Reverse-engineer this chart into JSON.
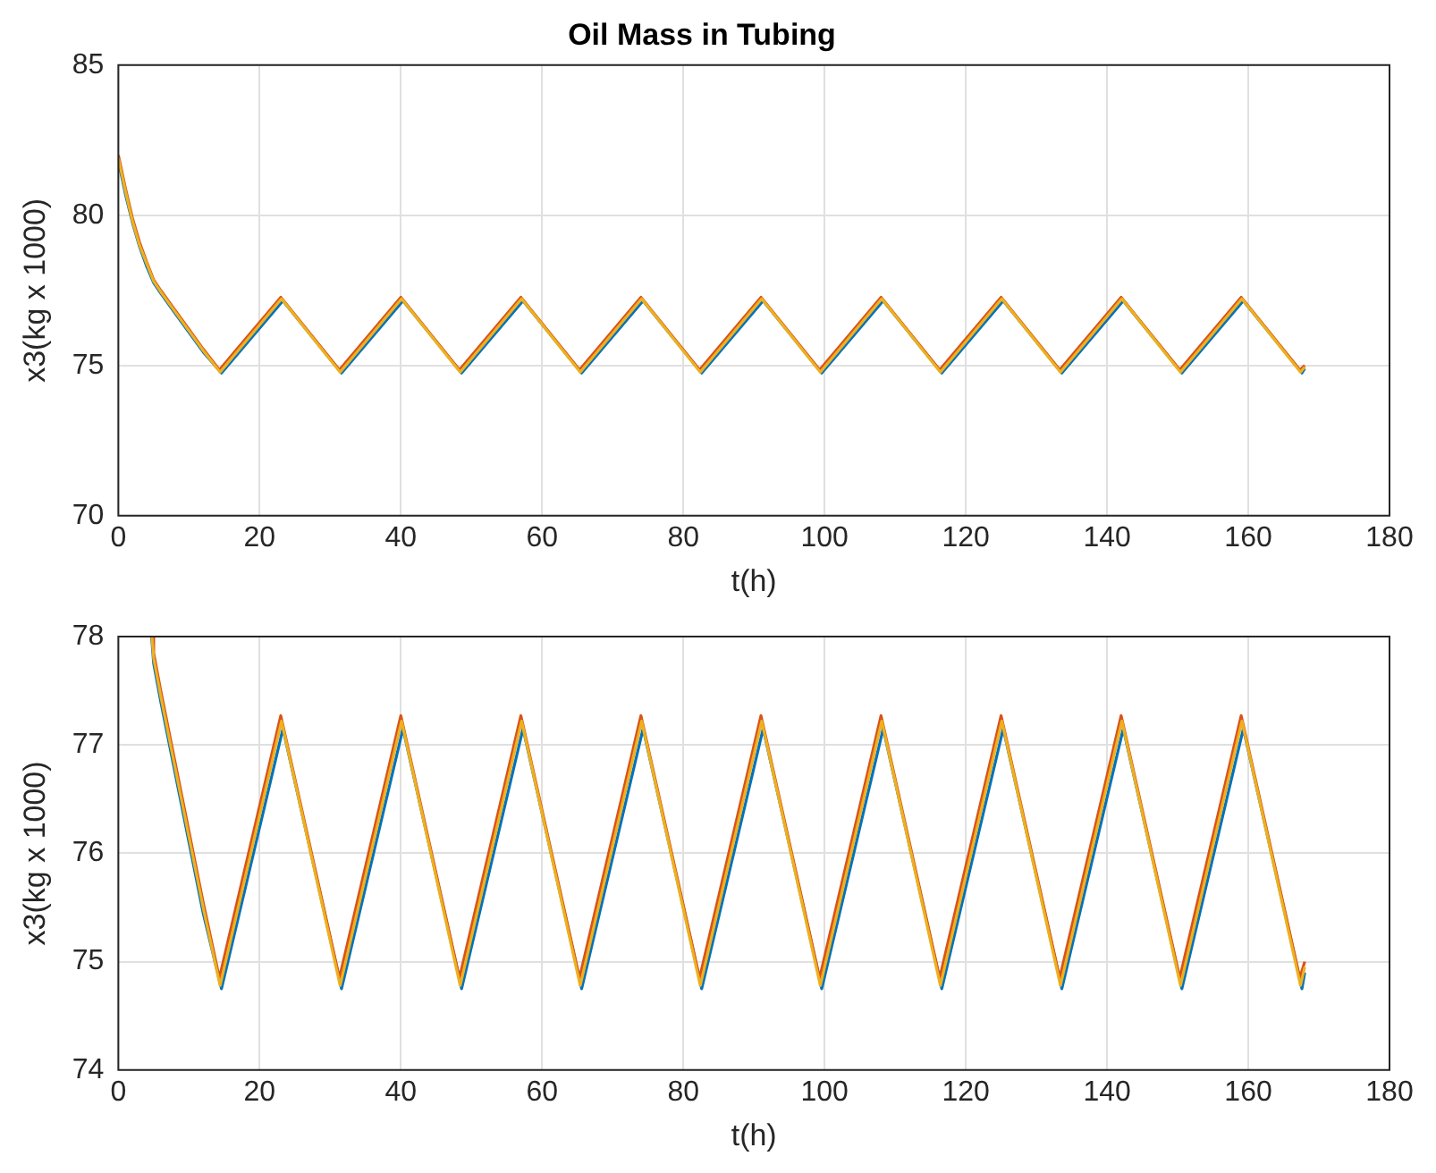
{
  "chart_data": [
    {
      "type": "line",
      "title": "Oil Mass in Tubing",
      "xlabel": "t(h)",
      "ylabel": "x3(kg x 1000)",
      "xlim": [
        0,
        180
      ],
      "xticks": [
        0,
        20,
        40,
        60,
        80,
        100,
        120,
        140,
        160,
        180
      ],
      "ylim": [
        70,
        85
      ],
      "yticks": [
        70,
        75,
        80,
        85
      ],
      "grid": true,
      "series": [
        {
          "color": "#0072bd",
          "x": [
            0,
            1,
            2,
            3,
            4,
            5,
            6,
            8,
            10,
            12,
            14.6,
            23.3,
            31.6,
            40.3,
            48.6,
            57.3,
            65.6,
            74.3,
            82.6,
            91.3,
            99.6,
            108.3,
            116.6,
            125.3,
            133.6,
            142.3,
            150.6,
            159.3,
            167.6,
            168
          ],
          "values": [
            81.8,
            80.7,
            79.75,
            78.95,
            78.3,
            77.75,
            77.4,
            76.75,
            76.1,
            75.45,
            74.75,
            77.15,
            74.75,
            77.15,
            74.75,
            77.15,
            74.75,
            77.15,
            74.75,
            77.15,
            74.75,
            77.15,
            74.75,
            77.15,
            74.75,
            77.15,
            74.75,
            77.15,
            74.75,
            74.9
          ]
        },
        {
          "color": "#d95319",
          "x": [
            0,
            1,
            2,
            3,
            4,
            5,
            6,
            8,
            10,
            12,
            14.3,
            23,
            31.3,
            40,
            48.3,
            57,
            65.3,
            74,
            82.3,
            91,
            99.3,
            108,
            116.3,
            125,
            133.3,
            142,
            150.3,
            159,
            167.3,
            168
          ],
          "values": [
            82,
            80.9,
            79.9,
            79.1,
            78.45,
            77.85,
            77.5,
            76.85,
            76.2,
            75.55,
            74.85,
            77.27,
            74.85,
            77.27,
            74.85,
            77.27,
            74.85,
            77.27,
            74.85,
            77.27,
            74.85,
            77.27,
            74.85,
            77.27,
            74.85,
            77.27,
            74.85,
            77.27,
            74.85,
            75
          ]
        },
        {
          "color": "#edb120",
          "x": [
            0,
            1,
            2,
            3,
            4,
            5,
            6,
            8,
            10,
            12,
            14.4,
            23.1,
            31.4,
            40.1,
            48.4,
            57.1,
            65.4,
            74.1,
            82.4,
            91.1,
            99.4,
            108.1,
            116.4,
            125.1,
            133.4,
            142.1,
            150.4,
            159.1,
            167.4,
            168
          ],
          "values": [
            81.9,
            80.8,
            79.8,
            79,
            78.4,
            77.8,
            77.45,
            76.8,
            76.15,
            75.5,
            74.78,
            77.22,
            74.78,
            77.22,
            74.78,
            77.22,
            74.78,
            77.22,
            74.78,
            77.22,
            74.78,
            77.22,
            74.78,
            77.22,
            74.78,
            77.22,
            74.78,
            77.22,
            74.78,
            74.95
          ]
        }
      ]
    },
    {
      "type": "line",
      "xlabel": "t(h)",
      "ylabel": "x3(kg x 1000)",
      "xlim": [
        0,
        180
      ],
      "xticks": [
        0,
        20,
        40,
        60,
        80,
        100,
        120,
        140,
        160,
        180
      ],
      "ylim": [
        74,
        78
      ],
      "yticks": [
        74,
        75,
        76,
        77,
        78
      ],
      "grid": true,
      "series": [
        {
          "color": "#0072bd",
          "x": [
            4.7,
            5,
            6,
            8,
            10,
            12,
            14.6,
            23.3,
            31.6,
            40.3,
            48.6,
            57.3,
            65.6,
            74.3,
            82.6,
            91.3,
            99.6,
            108.3,
            116.6,
            125.3,
            133.6,
            142.3,
            150.6,
            159.3,
            167.6,
            168
          ],
          "values": [
            78,
            77.75,
            77.4,
            76.75,
            76.1,
            75.45,
            74.75,
            77.15,
            74.75,
            77.15,
            74.75,
            77.15,
            74.75,
            77.15,
            74.75,
            77.15,
            74.75,
            77.15,
            74.75,
            77.15,
            74.75,
            77.15,
            74.75,
            77.15,
            74.75,
            74.9
          ]
        },
        {
          "color": "#d95319",
          "x": [
            4.8,
            5,
            6,
            8,
            10,
            12,
            14.3,
            23,
            31.3,
            40,
            48.3,
            57,
            65.3,
            74,
            82.3,
            91,
            99.3,
            108,
            116.3,
            125,
            133.3,
            142,
            150.3,
            159,
            167.3,
            168
          ],
          "values": [
            78,
            77.85,
            77.5,
            76.85,
            76.2,
            75.55,
            74.85,
            77.27,
            74.85,
            77.27,
            74.85,
            77.27,
            74.85,
            77.27,
            74.85,
            77.27,
            74.85,
            77.27,
            74.85,
            77.27,
            74.85,
            77.27,
            74.85,
            77.27,
            74.85,
            75
          ]
        },
        {
          "color": "#edb120",
          "x": [
            4.75,
            5,
            6,
            8,
            10,
            12,
            14.4,
            23.1,
            31.4,
            40.1,
            48.4,
            57.1,
            65.4,
            74.1,
            82.4,
            91.1,
            99.4,
            108.1,
            116.4,
            125.1,
            133.4,
            142.1,
            150.4,
            159.1,
            167.4,
            168
          ],
          "values": [
            78,
            77.8,
            77.45,
            76.8,
            76.15,
            75.5,
            74.78,
            77.22,
            74.78,
            77.22,
            74.78,
            77.22,
            74.78,
            77.22,
            74.78,
            77.22,
            74.78,
            77.22,
            74.78,
            77.22,
            74.78,
            77.22,
            74.78,
            77.22,
            74.78,
            74.95
          ]
        }
      ]
    }
  ]
}
